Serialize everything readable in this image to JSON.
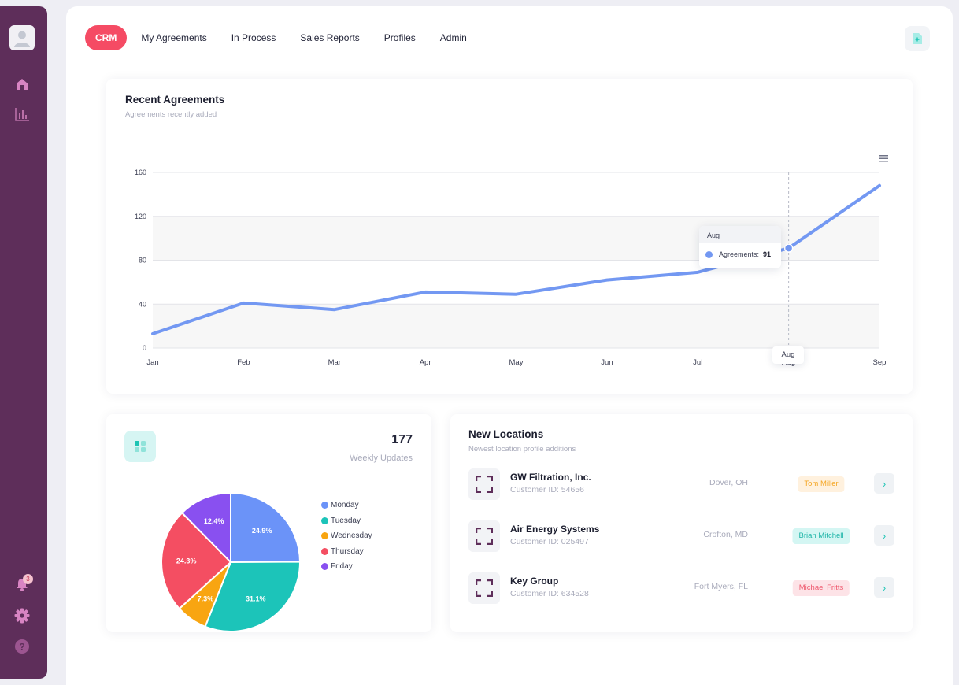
{
  "nav": {
    "tabs": [
      {
        "label": "CRM",
        "active": true
      },
      {
        "label": "My Agreements",
        "active": false
      },
      {
        "label": "In Process",
        "active": false
      },
      {
        "label": "Sales Reports",
        "active": false
      },
      {
        "label": "Profiles",
        "active": false
      },
      {
        "label": "Admin",
        "active": false
      }
    ],
    "action_icon": "add-file-icon"
  },
  "sidebar": {
    "avatar_icon": "user-avatar-icon",
    "top_icons": [
      "home-icon",
      "bar-chart-icon"
    ],
    "bottom_icons": [
      "bell-icon",
      "gear-icon",
      "help-icon"
    ],
    "notification_count": "3",
    "accent": "#5e2e5a"
  },
  "recent_agreements": {
    "title": "Recent Agreements",
    "subtitle": "Agreements recently added",
    "menu_icon": "hamburger-menu-icon",
    "tooltip": {
      "header": "Aug",
      "series": "Agreements:",
      "value": "91"
    },
    "chart_data": {
      "type": "line",
      "categories": [
        "Jan",
        "Feb",
        "Mar",
        "Apr",
        "May",
        "Jun",
        "Jul",
        "Aug",
        "Sep"
      ],
      "series": [
        {
          "name": "Agreements",
          "values": [
            13,
            41,
            35,
            51,
            49,
            62,
            69,
            91,
            148
          ]
        }
      ],
      "y_ticks": [
        "0",
        "40",
        "80",
        "120",
        "160"
      ],
      "ylim": [
        0,
        160
      ],
      "grid": true,
      "color": "#7398f2"
    }
  },
  "weekly": {
    "count": "177",
    "label": "Weekly Updates",
    "icon": "grid-icon",
    "chart_data": {
      "type": "pie",
      "labels": [
        "Monday",
        "Tuesday",
        "Wednesday",
        "Thursday",
        "Friday"
      ],
      "values": [
        24.9,
        31.1,
        7.3,
        24.3,
        12.4
      ],
      "data_labels": [
        "24.9%",
        "31.1%",
        "7.3%",
        "24.3%",
        "12.4%"
      ],
      "colors": [
        "#6b93f8",
        "#1cc4b9",
        "#f8a511",
        "#f44e62",
        "#8950f0"
      ],
      "legend_position": "right"
    }
  },
  "new_locations": {
    "title": "New Locations",
    "subtitle": "Newest location profile additions",
    "rows": [
      {
        "name": "GW Filtration, Inc.",
        "customer_id": "Customer ID: 54656",
        "city": "Dover, OH",
        "person": "Tom Miller",
        "tag_bg": "#fff1de",
        "tag_fg": "#f5a623",
        "icon": "expand-frame-icon"
      },
      {
        "name": "Air Energy Systems",
        "customer_id": "Customer ID: 025497",
        "city": "Crofton, MD",
        "person": "Brian Mitchell",
        "tag_bg": "#d4f6f3",
        "tag_fg": "#1fb5a8",
        "icon": "expand-frame-icon"
      },
      {
        "name": "Key Group",
        "customer_id": "Customer ID: 634528",
        "city": "Fort Myers, FL",
        "person": "Michael Fritts",
        "tag_bg": "#fde3e7",
        "tag_fg": "#ef5a6f",
        "icon": "expand-frame-icon"
      }
    ]
  }
}
